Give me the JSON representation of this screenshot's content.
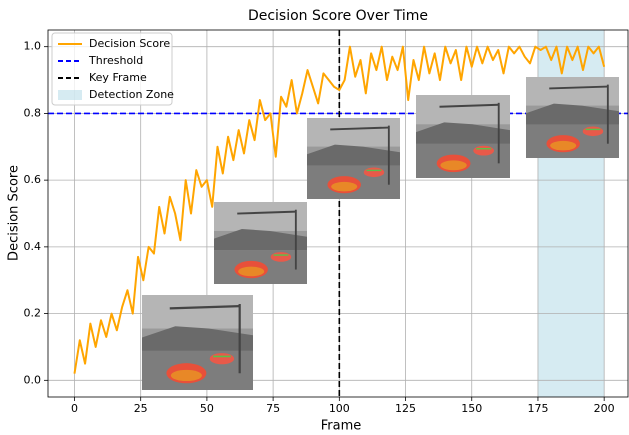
{
  "chart_data": {
    "type": "line",
    "title": "Decision Score Over Time",
    "xlabel": "Frame",
    "ylabel": "Decision Score",
    "x": [
      0,
      2,
      4,
      6,
      8,
      10,
      12,
      14,
      16,
      18,
      20,
      22,
      24,
      26,
      28,
      30,
      32,
      34,
      36,
      38,
      40,
      42,
      44,
      46,
      48,
      50,
      52,
      54,
      56,
      58,
      60,
      62,
      64,
      66,
      68,
      70,
      72,
      74,
      76,
      78,
      80,
      82,
      84,
      86,
      88,
      90,
      92,
      94,
      96,
      98,
      100,
      102,
      104,
      106,
      108,
      110,
      112,
      114,
      116,
      118,
      120,
      122,
      124,
      126,
      128,
      130,
      132,
      134,
      136,
      138,
      140,
      142,
      144,
      146,
      148,
      150,
      152,
      154,
      156,
      158,
      160,
      162,
      164,
      166,
      168,
      170,
      172,
      174,
      176,
      178,
      180,
      182,
      184,
      186,
      188,
      190,
      192,
      194,
      196,
      198,
      200
    ],
    "series": [
      {
        "name": "Decision Score",
        "color": "#ffa500",
        "values": [
          0.02,
          0.12,
          0.05,
          0.17,
          0.1,
          0.18,
          0.13,
          0.2,
          0.15,
          0.22,
          0.27,
          0.2,
          0.37,
          0.3,
          0.4,
          0.38,
          0.52,
          0.44,
          0.55,
          0.5,
          0.42,
          0.6,
          0.5,
          0.63,
          0.58,
          0.6,
          0.52,
          0.7,
          0.62,
          0.73,
          0.66,
          0.75,
          0.68,
          0.78,
          0.72,
          0.84,
          0.78,
          0.8,
          0.67,
          0.85,
          0.82,
          0.9,
          0.8,
          0.86,
          0.93,
          0.88,
          0.83,
          0.92,
          0.9,
          0.88,
          0.87,
          0.9,
          1.0,
          0.91,
          0.96,
          0.86,
          0.98,
          0.93,
          1.0,
          0.9,
          0.97,
          0.93,
          1.0,
          0.84,
          0.96,
          0.9,
          1.0,
          0.92,
          0.98,
          0.9,
          1.0,
          0.95,
          0.99,
          0.9,
          1.0,
          0.94,
          1.0,
          0.95,
          1.0,
          0.96,
          0.99,
          0.92,
          1.0,
          0.98,
          1.0,
          0.97,
          0.95,
          1.0,
          0.99,
          1.0,
          0.96,
          1.0,
          0.92,
          1.0,
          0.96,
          1.0,
          0.93,
          1.0,
          0.98,
          1.0,
          0.94
        ]
      }
    ],
    "threshold": {
      "name": "Threshold",
      "value": 0.8,
      "color": "#0000ff"
    },
    "key_frame": {
      "name": "Key Frame",
      "value": 100,
      "color": "#000000"
    },
    "detection_zone": {
      "name": "Detection Zone",
      "range": [
        175,
        200
      ],
      "color": "#add8e6"
    },
    "xlim": [
      -10,
      209
    ],
    "ylim": [
      -0.05,
      1.05
    ],
    "xticks": [
      0,
      25,
      50,
      75,
      100,
      125,
      150,
      175,
      200
    ],
    "yticks": [
      {
        "value": 0,
        "label": "0.0"
      },
      0.2,
      0.4,
      0.6,
      0.8,
      {
        "value": 1,
        "label": "1.0"
      }
    ],
    "grid": true,
    "legend": "upper left"
  }
}
